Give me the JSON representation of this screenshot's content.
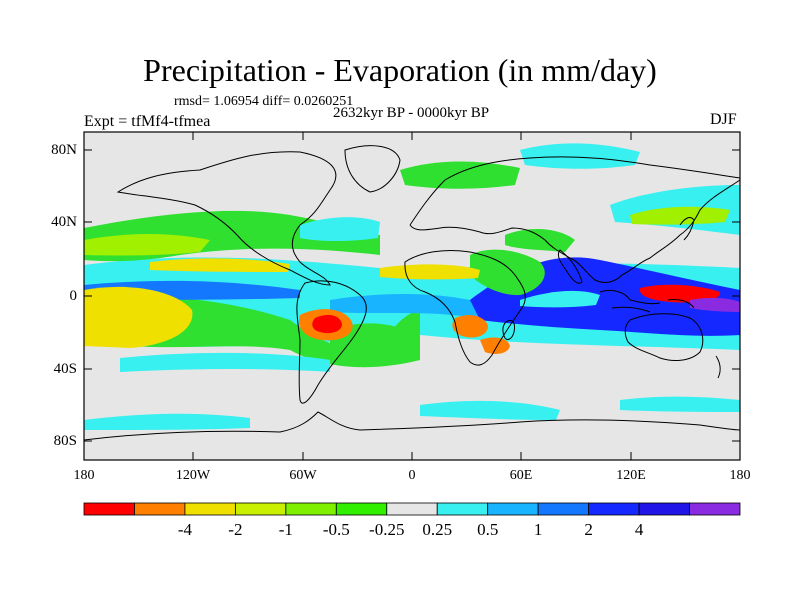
{
  "title": "Precipitation - Evaporation (in mm/day)",
  "stats": "rmsd= 1.06954 diff= 0.0260251",
  "period": "2632kyr BP - 0000kyr BP",
  "experiment": "Expt = tfMf4-tfmea",
  "season": "DJF",
  "lat_labels": [
    "80N",
    "40N",
    "0",
    "40S",
    "80S"
  ],
  "lon_labels": [
    "180",
    "120W",
    "60W",
    "0",
    "60E",
    "120E",
    "180"
  ],
  "colorbar": {
    "labels": [
      "-4",
      "-2",
      "-1",
      "-0.5",
      "-0.25",
      "0.25",
      "0.5",
      "1",
      "2",
      "4"
    ],
    "colors": [
      "#ff0000",
      "#ff8000",
      "#f0e000",
      "#c8f000",
      "#7ef000",
      "#30f000",
      "#e6e6e6",
      "#38f0f0",
      "#18b4ff",
      "#1478ff",
      "#1428ff",
      "#2014e6",
      "#8a2be2"
    ]
  },
  "map_colors": {
    "land_outline": "#000000",
    "neutral": "#e6e6e6",
    "green": "#30e030",
    "lime": "#a0f000",
    "yellow": "#f0e000",
    "orange": "#ff8000",
    "red": "#ff0000",
    "cyan": "#38f0f0",
    "lightblue": "#18b4ff",
    "blue": "#1478ff",
    "darkblue": "#1428ff",
    "purple": "#8a2be2"
  }
}
